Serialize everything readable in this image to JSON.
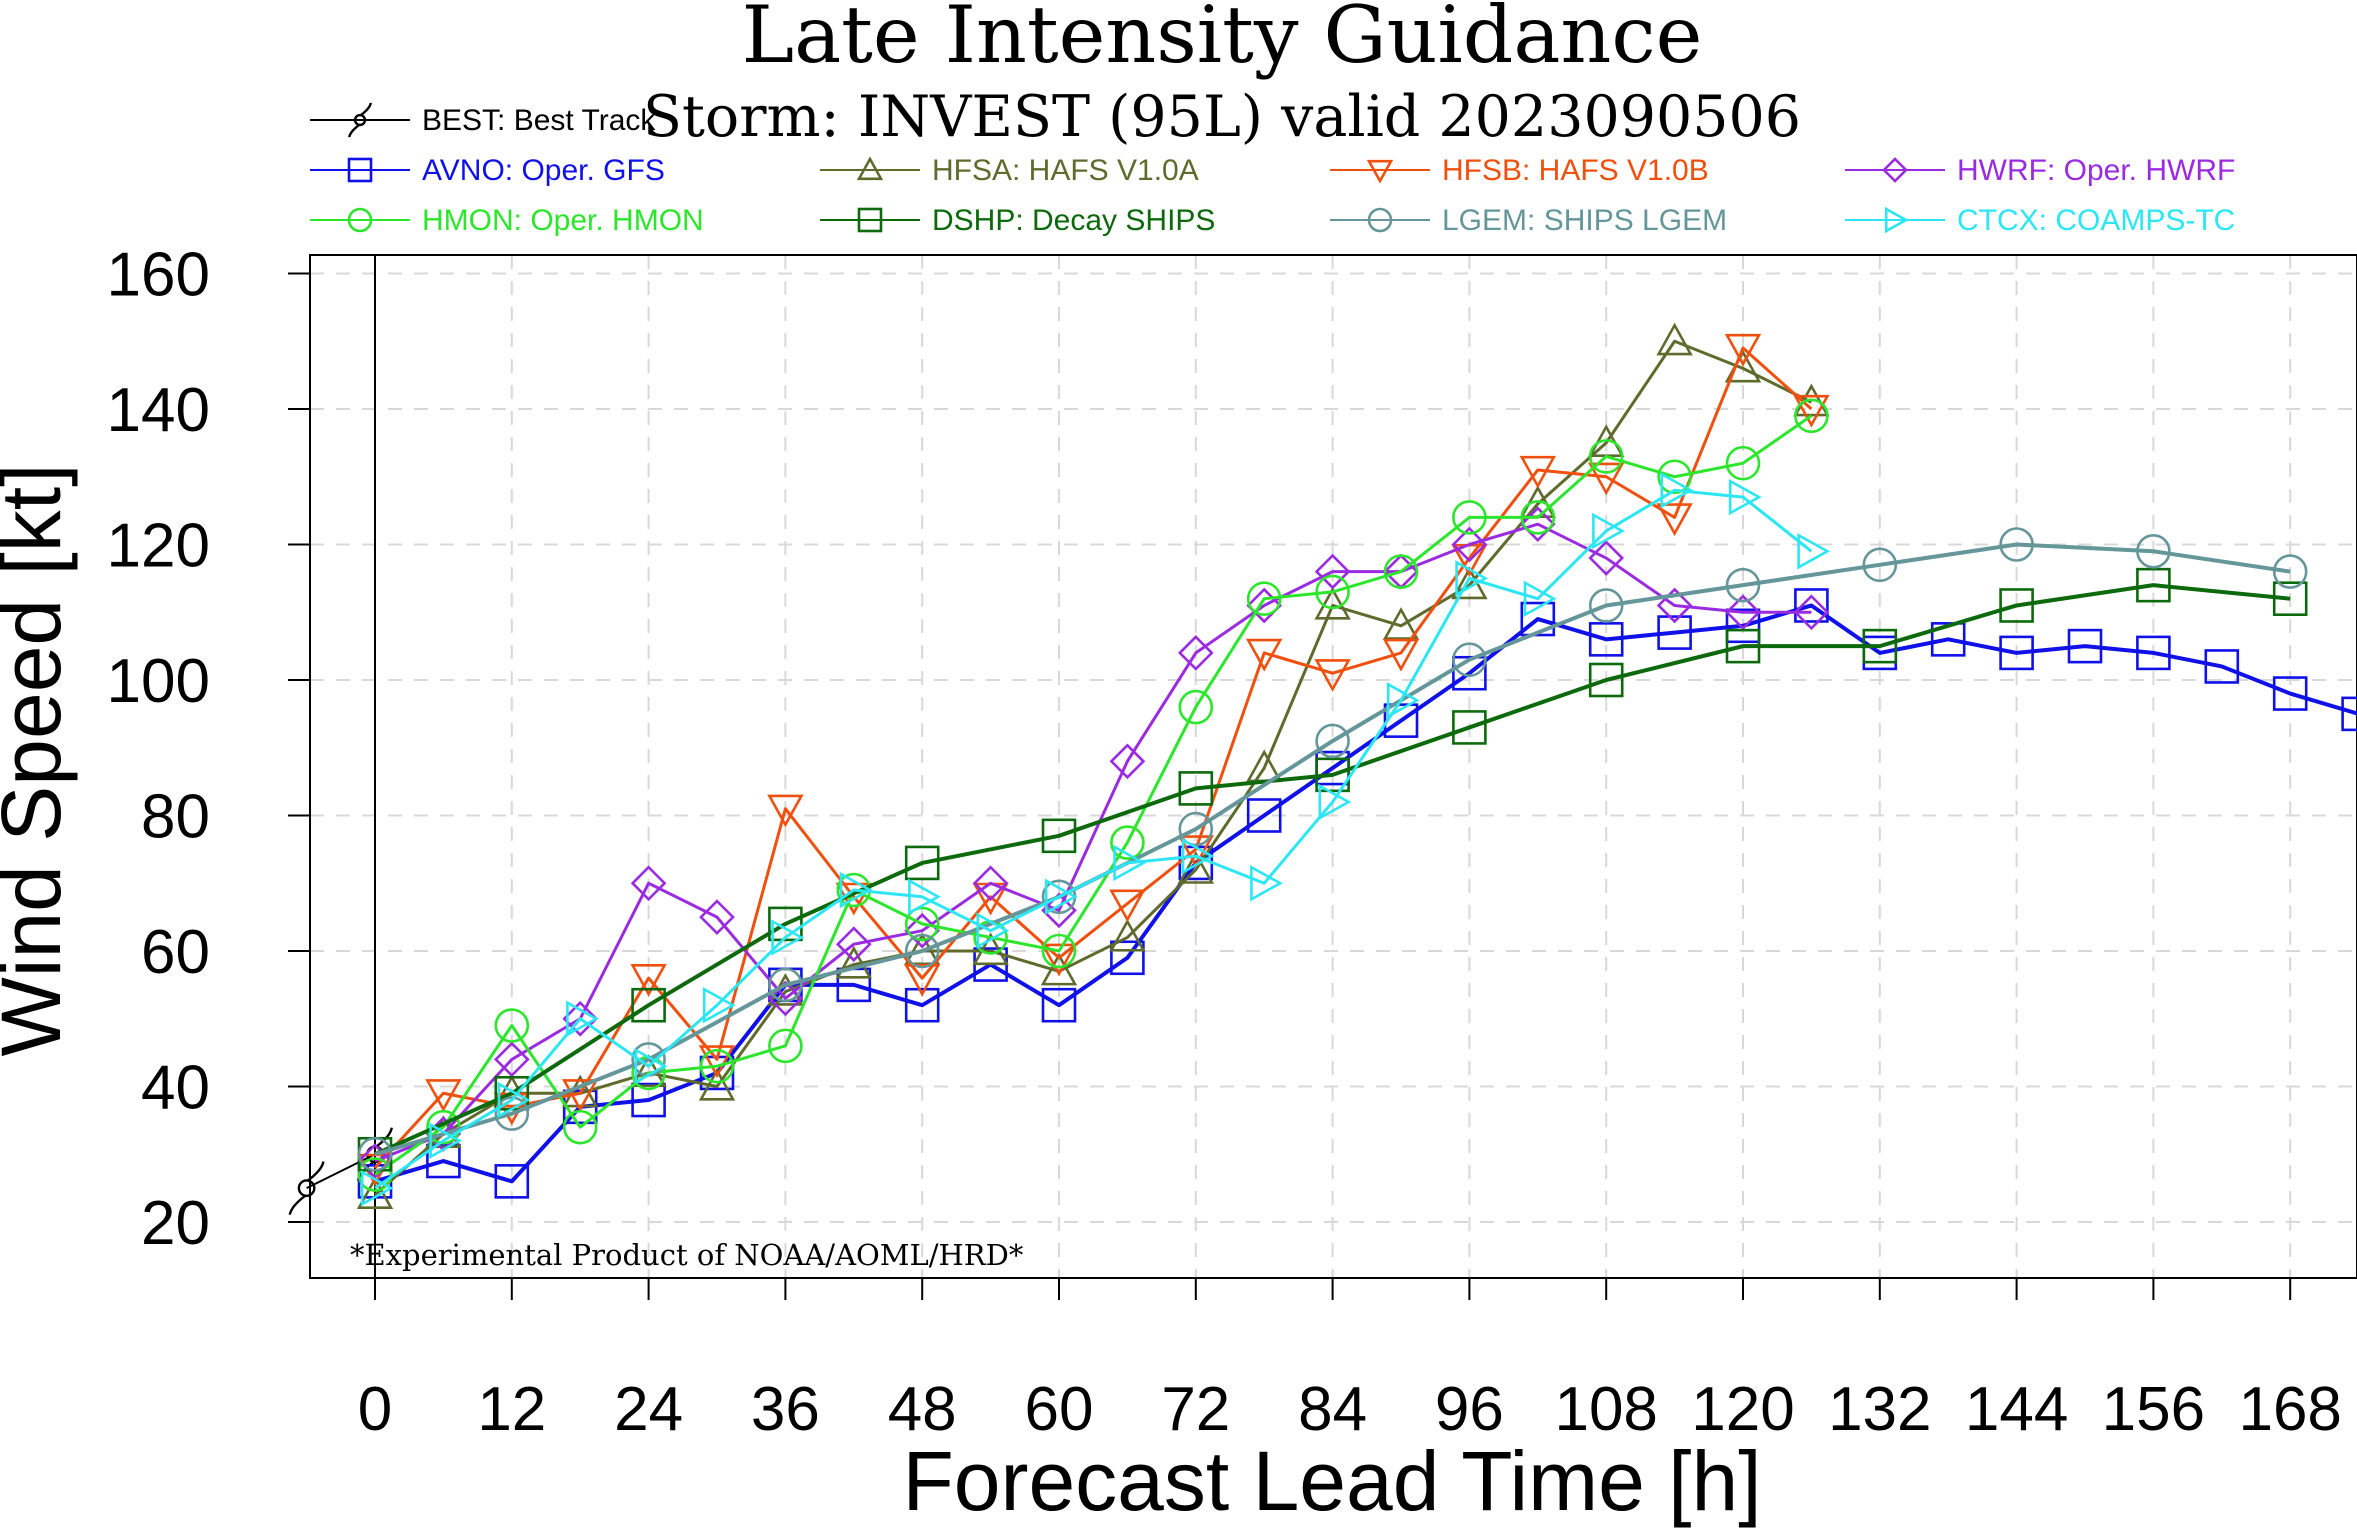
{
  "chart_data": {
    "type": "line",
    "title": "Late Intensity Guidance",
    "subtitle": "Storm: INVEST (95L) valid 2023090506",
    "xlabel": "Forecast Lead Time [h]",
    "ylabel": "Wind Speed [kt]",
    "xlim": [
      -12,
      173
    ],
    "ylim": [
      12,
      163
    ],
    "xticks": [
      0,
      12,
      24,
      36,
      48,
      60,
      72,
      84,
      96,
      108,
      120,
      132,
      144,
      156,
      168
    ],
    "yticks": [
      20,
      40,
      60,
      80,
      100,
      120,
      140,
      160
    ],
    "grid": true,
    "footnote": "*Experimental Product of NOAA/AOML/HRD*",
    "series": [
      {
        "id": "best",
        "name": "BEST: Best Track",
        "color": "#000000",
        "marker": "hurricane",
        "width": 2,
        "x": [
          -6,
          0
        ],
        "y": [
          25,
          30
        ]
      },
      {
        "id": "avno",
        "name": "AVNO: Oper. GFS",
        "color": "#1010e8",
        "marker": "square",
        "width": 4,
        "x": [
          0,
          6,
          12,
          18,
          24,
          30,
          36,
          42,
          48,
          54,
          60,
          66,
          72,
          78,
          84,
          90,
          96,
          102,
          108,
          114,
          120,
          126,
          132,
          138,
          144,
          150,
          156,
          162,
          168,
          174
        ],
        "y": [
          26,
          29,
          26,
          37,
          38,
          42,
          55,
          55,
          52,
          58,
          52,
          59,
          73,
          80,
          87,
          94,
          101,
          109,
          106,
          107,
          108,
          111,
          104,
          106,
          104,
          105,
          104,
          102,
          98,
          95
        ]
      },
      {
        "id": "hfsa",
        "name": "HFSA: HAFS V1.0A",
        "color": "#5e6b2c",
        "marker": "triangle-up",
        "width": 3,
        "x": [
          0,
          6,
          12,
          18,
          24,
          30,
          36,
          42,
          48,
          54,
          60,
          66,
          72,
          78,
          84,
          90,
          96,
          102,
          108,
          114,
          120,
          126
        ],
        "y": [
          24,
          33,
          39,
          39,
          42,
          40,
          54,
          58,
          60,
          60,
          57,
          62,
          72,
          87,
          111,
          108,
          114,
          126,
          135,
          150,
          146,
          141
        ]
      },
      {
        "id": "hfsb",
        "name": "HFSB: HAFS V1.0B",
        "color": "#f0500e",
        "marker": "triangle-down",
        "width": 3,
        "x": [
          0,
          6,
          12,
          18,
          24,
          30,
          36,
          42,
          48,
          54,
          60,
          66,
          72,
          78,
          84,
          90,
          96,
          102,
          108,
          114,
          120,
          126
        ],
        "y": [
          28,
          39,
          37,
          39,
          56,
          44,
          81,
          68,
          56,
          68,
          59,
          67,
          75,
          104,
          101,
          104,
          118,
          131,
          130,
          124,
          149,
          140
        ]
      },
      {
        "id": "hwrf",
        "name": "HWRF: Oper. HWRF",
        "color": "#9a2be0",
        "marker": "diamond",
        "width": 3,
        "x": [
          0,
          6,
          12,
          18,
          24,
          30,
          36,
          42,
          48,
          54,
          60,
          66,
          72,
          78,
          84,
          90,
          96,
          102,
          108,
          114,
          120,
          126
        ],
        "y": [
          29,
          33,
          44,
          50,
          70,
          65,
          53,
          61,
          63,
          70,
          66,
          88,
          104,
          111,
          116,
          116,
          120,
          123,
          118,
          111,
          110,
          110
        ]
      },
      {
        "id": "hmon",
        "name": "HMON: Oper. HMON",
        "color": "#2ce62c",
        "marker": "circle",
        "width": 3,
        "x": [
          0,
          6,
          12,
          18,
          24,
          30,
          36,
          42,
          48,
          54,
          60,
          66,
          72,
          78,
          84,
          90,
          96,
          102,
          108,
          114,
          120,
          126
        ],
        "y": [
          27,
          34,
          49,
          34,
          42,
          43,
          46,
          69,
          64,
          62,
          60,
          76,
          96,
          112,
          113,
          116,
          124,
          124,
          133,
          130,
          132,
          139
        ]
      },
      {
        "id": "dshp",
        "name": "DSHP: Decay SHIPS",
        "color": "#0c6a0c",
        "marker": "square",
        "width": 4,
        "x": [
          0,
          12,
          24,
          36,
          48,
          60,
          72,
          84,
          96,
          108,
          120,
          132,
          144,
          156,
          168
        ],
        "y": [
          30,
          39,
          52,
          64,
          73,
          77,
          84,
          86,
          93,
          100,
          105,
          105,
          111,
          114,
          112
        ]
      },
      {
        "id": "lgem",
        "name": "LGEM: SHIPS LGEM",
        "color": "#64969a",
        "marker": "circle",
        "width": 4,
        "x": [
          0,
          12,
          24,
          36,
          48,
          60,
          72,
          84,
          96,
          108,
          120,
          132,
          144,
          156,
          168
        ],
        "y": [
          30,
          36,
          44,
          55,
          60,
          68,
          78,
          91,
          103,
          111,
          114,
          117,
          120,
          119,
          116
        ]
      },
      {
        "id": "ctcx",
        "name": "CTCX: COAMPS-TC",
        "color": "#2ce6f4",
        "marker": "triangle-right",
        "width": 3,
        "x": [
          0,
          6,
          12,
          18,
          24,
          30,
          36,
          42,
          48,
          54,
          60,
          66,
          72,
          78,
          84,
          90,
          96,
          102,
          108,
          114,
          120,
          126
        ],
        "y": [
          25,
          32,
          38,
          50,
          43,
          52,
          62,
          69,
          68,
          63,
          68,
          73,
          74,
          70,
          82,
          97,
          115,
          112,
          122,
          128,
          127,
          119
        ]
      }
    ]
  }
}
